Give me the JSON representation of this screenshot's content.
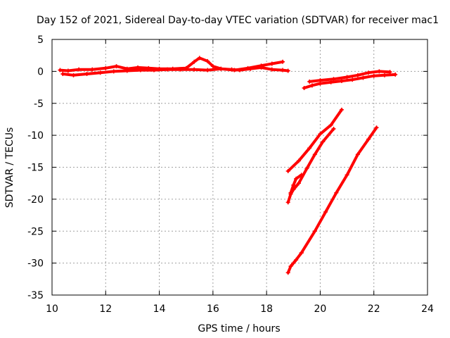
{
  "chart_data": {
    "type": "scatter",
    "title": "Day 152 of 2021, Sidereal Day-to-day VTEC variation (SDTVAR) for receiver mac1",
    "xlabel": "GPS time / hours",
    "ylabel": "SDTVAR / TECUs",
    "xlim": [
      10,
      24
    ],
    "ylim": [
      -35,
      5
    ],
    "x_ticks": [
      10,
      12,
      14,
      16,
      18,
      20,
      22,
      24
    ],
    "y_ticks": [
      5,
      0,
      -5,
      -10,
      -15,
      -20,
      -25,
      -30,
      -35
    ],
    "grid": true,
    "legend": "none",
    "colors": {
      "series": "#ff0000",
      "grid": "#a0a0a0",
      "axis": "#000000"
    },
    "series": [
      {
        "x": [
          10.3,
          10.6,
          11.0,
          11.5,
          12.0,
          12.4,
          12.8,
          13.2,
          13.6,
          14.0,
          14.5,
          15.0,
          15.3,
          15.5,
          15.8,
          16.0,
          16.3,
          16.7,
          17.0,
          17.4,
          17.8,
          18.2,
          18.6,
          18.8
        ],
        "y": [
          0.2,
          0.1,
          0.3,
          0.3,
          0.5,
          0.8,
          0.4,
          0.6,
          0.5,
          0.4,
          0.4,
          0.5,
          1.5,
          2.1,
          1.6,
          0.8,
          0.4,
          0.3,
          0.2,
          0.4,
          0.6,
          0.3,
          0.2,
          0.1
        ]
      },
      {
        "x": [
          10.4,
          10.8,
          11.3,
          11.8,
          12.3,
          12.8,
          13.3,
          13.8,
          14.3,
          14.8,
          15.3,
          15.8,
          16.3,
          16.8,
          17.3,
          17.8,
          18.2,
          18.6
        ],
        "y": [
          -0.4,
          -0.6,
          -0.4,
          -0.2,
          0.0,
          0.1,
          0.2,
          0.2,
          0.3,
          0.3,
          0.3,
          0.2,
          0.4,
          0.2,
          0.5,
          0.9,
          1.2,
          1.5
        ]
      },
      {
        "x": [
          19.4,
          19.7,
          20.0,
          20.4,
          20.8,
          21.2,
          21.6,
          22.0,
          22.4,
          22.8
        ],
        "y": [
          -2.6,
          -2.2,
          -1.9,
          -1.7,
          -1.5,
          -1.3,
          -1.0,
          -0.7,
          -0.6,
          -0.5
        ]
      },
      {
        "x": [
          19.6,
          20.0,
          20.5,
          21.0,
          21.4,
          21.8,
          22.2,
          22.6
        ],
        "y": [
          -1.6,
          -1.4,
          -1.2,
          -0.9,
          -0.6,
          -0.2,
          0.0,
          -0.1
        ]
      },
      {
        "x": [
          18.8,
          19.2,
          19.6,
          20.0,
          20.4,
          20.8
        ],
        "y": [
          -15.6,
          -14.0,
          -12.0,
          -9.8,
          -8.4,
          -6.0
        ]
      },
      {
        "x": [
          18.8,
          18.9,
          19.0,
          19.2,
          19.5,
          19.8,
          20.1,
          20.5
        ],
        "y": [
          -20.5,
          -19.2,
          -18.5,
          -17.5,
          -15.2,
          -13.0,
          -11.0,
          -9.0
        ]
      },
      {
        "x": [
          18.8,
          18.9,
          19.0,
          19.1,
          19.3
        ],
        "y": [
          -31.5,
          -30.5,
          -30.0,
          -29.5,
          -28.4
        ]
      },
      {
        "x": [
          19.3,
          19.8,
          20.2,
          20.6,
          21.0,
          21.4,
          21.8,
          22.1
        ],
        "y": [
          -28.4,
          -25.0,
          -22.0,
          -19.0,
          -16.2,
          -13.0,
          -10.6,
          -8.8
        ]
      },
      {
        "x": [
          18.9,
          19.0,
          19.1,
          19.3
        ],
        "y": [
          -19.0,
          -17.8,
          -16.8,
          -16.2
        ]
      }
    ]
  }
}
